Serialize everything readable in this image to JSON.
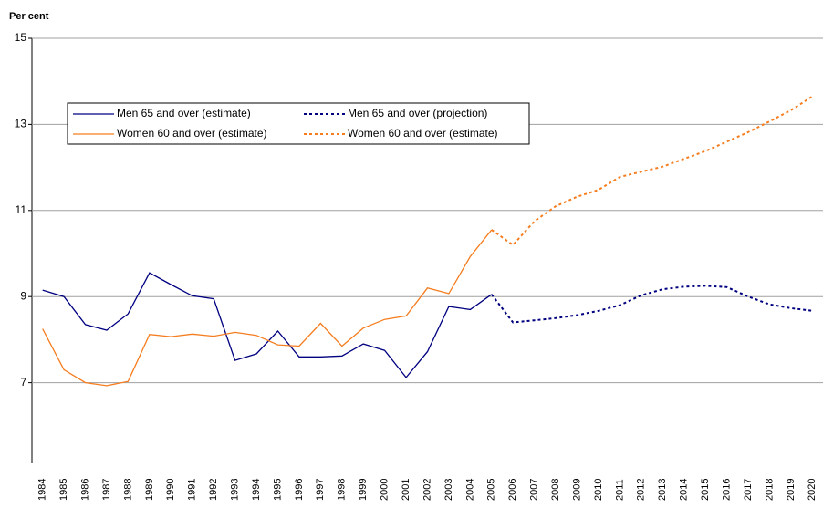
{
  "chart_data": {
    "type": "line",
    "y_label": "Per cent",
    "categories": [
      "1984",
      "1985",
      "1986",
      "1987",
      "1988",
      "1989",
      "1990",
      "1991",
      "1992",
      "1993",
      "1994",
      "1995",
      "1996",
      "1997",
      "1998",
      "1999",
      "2000",
      "2001",
      "2002",
      "2003",
      "2004",
      "2005",
      "2006",
      "2007",
      "2008",
      "2009",
      "2010",
      "2011",
      "2012",
      "2013",
      "2014",
      "2015",
      "2016",
      "2017",
      "2018",
      "2019",
      "2020"
    ],
    "ylim": [
      5,
      15
    ],
    "yticks": [
      7,
      9,
      11,
      13,
      15
    ],
    "grid": true,
    "series": [
      {
        "name": "Men 65 and over (estimate)",
        "color": "#000080",
        "dashed": false,
        "values": [
          9.15,
          9.0,
          8.35,
          8.22,
          8.6,
          9.55,
          9.28,
          9.02,
          8.95,
          7.52,
          7.67,
          8.2,
          7.6,
          7.6,
          7.62,
          7.9,
          7.75,
          7.12,
          7.72,
          8.77,
          8.7,
          9.05,
          null,
          null,
          null,
          null,
          null,
          null,
          null,
          null,
          null,
          null,
          null,
          null,
          null,
          null,
          null
        ]
      },
      {
        "name": "Women 60 and over (estimate)",
        "color": "#f57d1f",
        "dashed": false,
        "values": [
          8.25,
          7.3,
          7.0,
          6.93,
          7.03,
          8.12,
          8.07,
          8.13,
          8.08,
          8.17,
          8.1,
          7.88,
          7.85,
          8.38,
          7.85,
          8.27,
          8.47,
          8.55,
          9.2,
          9.07,
          9.93,
          10.55,
          null,
          null,
          null,
          null,
          null,
          null,
          null,
          null,
          null,
          null,
          null,
          null,
          null,
          null,
          null
        ]
      },
      {
        "name": "Men 65 and over (projection)",
        "color": "#000080",
        "dashed": true,
        "values": [
          null,
          null,
          null,
          null,
          null,
          null,
          null,
          null,
          null,
          null,
          null,
          null,
          null,
          null,
          null,
          null,
          null,
          null,
          null,
          null,
          null,
          9.05,
          8.4,
          8.45,
          8.5,
          8.57,
          8.67,
          8.8,
          9.03,
          9.17,
          9.23,
          9.25,
          9.22,
          9.0,
          8.82,
          8.73,
          8.67
        ]
      },
      {
        "name": "Women 60 and over (estimate)",
        "color": "#f57d1f",
        "dashed": true,
        "values": [
          null,
          null,
          null,
          null,
          null,
          null,
          null,
          null,
          null,
          null,
          null,
          null,
          null,
          null,
          null,
          null,
          null,
          null,
          null,
          null,
          null,
          10.55,
          10.2,
          10.75,
          11.1,
          11.32,
          11.48,
          11.78,
          11.9,
          12.02,
          12.2,
          12.38,
          12.6,
          12.82,
          13.07,
          13.33,
          13.65
        ]
      }
    ]
  }
}
